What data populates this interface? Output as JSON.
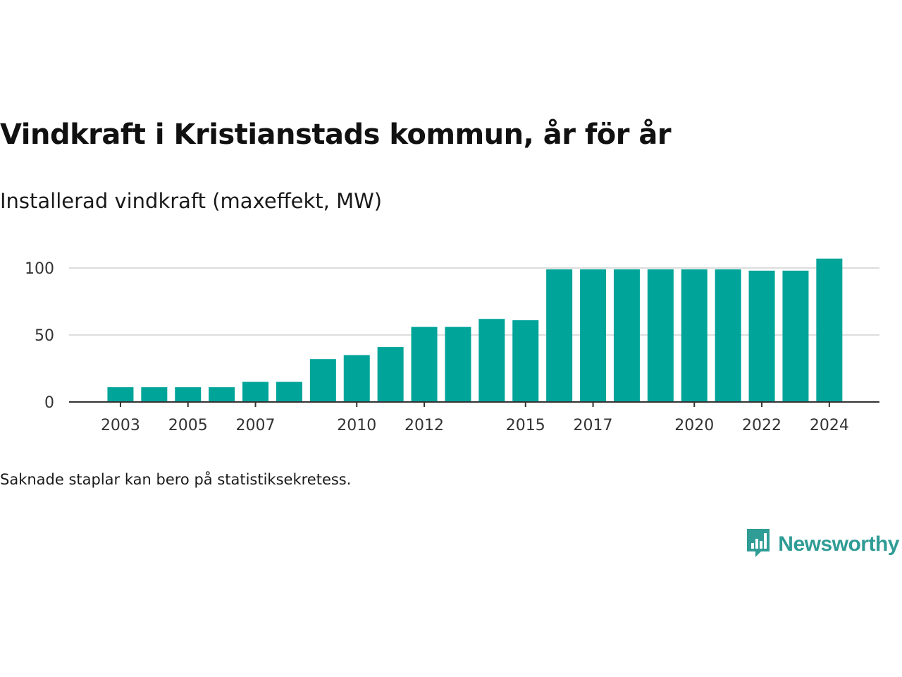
{
  "title": "Vindkraft i Kristianstads kommun, år för år",
  "subtitle": "Installerad vindkraft (maxeffekt, MW)",
  "footnote": "Saknade staplar kan bero på statistiksekretess.",
  "brand": {
    "name": "Newsworthy",
    "logo_icon": "newsworthy-logo-icon"
  },
  "colors": {
    "bar": "#00a499",
    "grid": "#dddddd",
    "axis": "#333333",
    "brand": "#2f9c95"
  },
  "chart_data": {
    "type": "bar",
    "categories": [
      "2003",
      "2004",
      "2005",
      "2006",
      "2007",
      "2008",
      "2009",
      "2010",
      "2011",
      "2012",
      "2013",
      "2014",
      "2015",
      "2016",
      "2017",
      "2018",
      "2019",
      "2020",
      "2021",
      "2022",
      "2023",
      "2024"
    ],
    "values": [
      11,
      11,
      11,
      11,
      15,
      15,
      32,
      35,
      41,
      56,
      56,
      62,
      61,
      99,
      99,
      99,
      99,
      99,
      99,
      98,
      98,
      107
    ],
    "x_tick_labels": [
      "2003",
      "2005",
      "2007",
      "2010",
      "2012",
      "2015",
      "2017",
      "2020",
      "2022",
      "2024"
    ],
    "y_ticks": [
      0,
      50,
      100
    ],
    "ylim": [
      0,
      110
    ],
    "grid": true,
    "legend": "none"
  }
}
